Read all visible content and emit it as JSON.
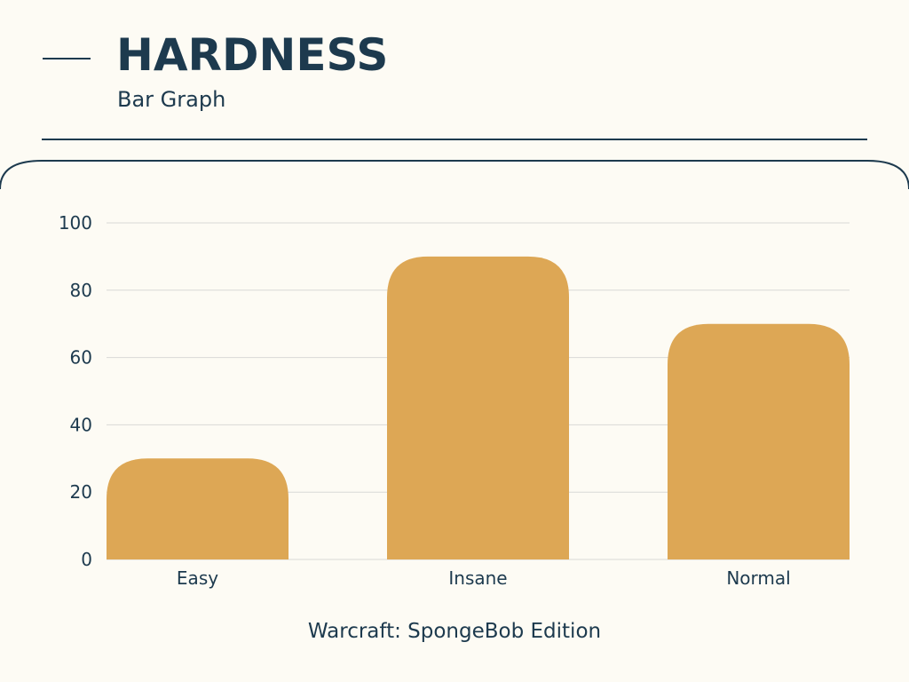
{
  "header": {
    "title": "HARDNESS",
    "subtitle": "Bar Graph"
  },
  "footer": {
    "caption": "Warcraft: SpongeBob Edition"
  },
  "colors": {
    "bar": "#dda755",
    "text": "#1d3a4e",
    "grid": "#d9d9d6",
    "background": "#fdfbf4"
  },
  "chart_data": {
    "type": "bar",
    "categories": [
      "Easy",
      "Insane",
      "Normal"
    ],
    "values": [
      30,
      90,
      70
    ],
    "ylim": [
      0,
      100
    ],
    "yticks": [
      "0",
      "20",
      "40",
      "60",
      "80",
      "100"
    ],
    "grid": true,
    "legend": "none"
  }
}
